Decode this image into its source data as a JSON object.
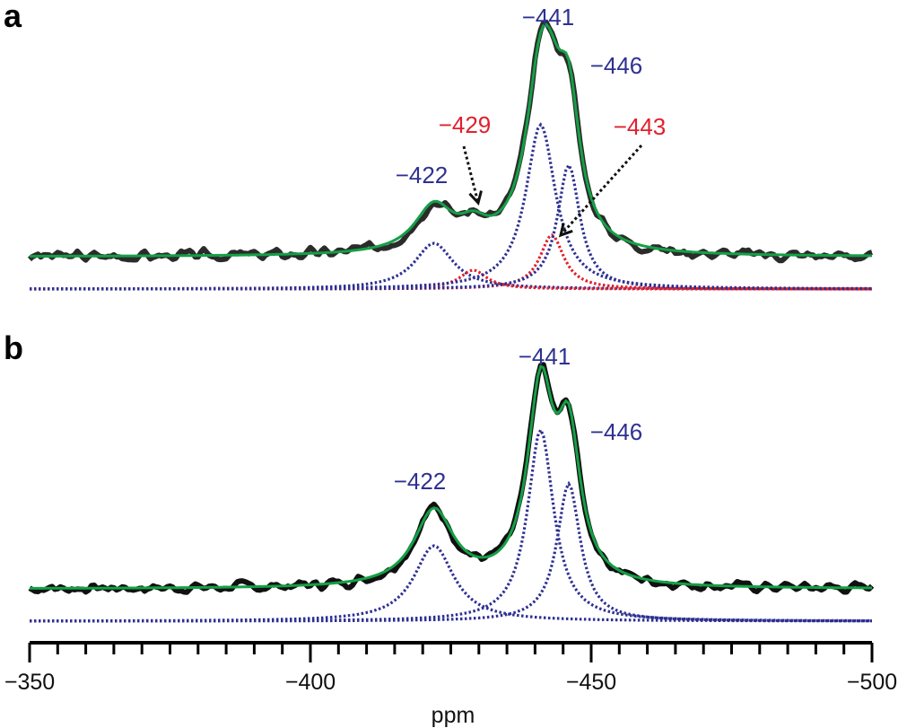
{
  "chart_data": [
    {
      "panel": "a",
      "type": "line",
      "xlabel": "ppm",
      "xlim": [
        -350,
        -500
      ],
      "baseline_component": 0.0,
      "baseline_fit": 0.12,
      "fit_color": "#14a046",
      "data_color": "#2b2b2b",
      "series": [
        {
          "name": "-422",
          "role": "component",
          "color": "#2e3191",
          "style": "dotted",
          "center": -422,
          "height": 0.17,
          "width": 4.2
        },
        {
          "name": "-429",
          "role": "component",
          "color": "#e0202c",
          "style": "dotted",
          "center": -429,
          "height": 0.07,
          "width": 3.0
        },
        {
          "name": "-441",
          "role": "component",
          "color": "#2e3191",
          "style": "dotted",
          "center": -441,
          "height": 0.61,
          "width": 3.2
        },
        {
          "name": "-443",
          "role": "component",
          "color": "#e0202c",
          "style": "dotted",
          "center": -443,
          "height": 0.2,
          "width": 2.6
        },
        {
          "name": "-446",
          "role": "component",
          "color": "#2e3191",
          "style": "dotted",
          "center": -446,
          "height": 0.46,
          "width": 2.4
        }
      ],
      "labels": [
        {
          "text": "−441",
          "color": "#2e3191",
          "x": -441
        },
        {
          "text": "−446",
          "color": "#2e3191",
          "x": -450
        },
        {
          "text": "−422",
          "color": "#2e3191",
          "x": -420
        },
        {
          "text": "−429",
          "color": "#e0202c",
          "x": -429
        },
        {
          "text": "−443",
          "color": "#e0202c",
          "x": -449
        }
      ]
    },
    {
      "panel": "b",
      "type": "line",
      "xlabel": "ppm",
      "xlim": [
        -350,
        -500
      ],
      "baseline_component": 0.0,
      "baseline_fit": 0.12,
      "fit_color": "#14a046",
      "data_color": "#111111",
      "series": [
        {
          "name": "-422",
          "role": "component",
          "color": "#2e3191",
          "style": "dotted",
          "center": -422,
          "height": 0.28,
          "width": 4.3
        },
        {
          "name": "-441",
          "role": "component",
          "color": "#2e3191",
          "style": "dotted",
          "center": -441,
          "height": 0.71,
          "width": 2.8
        },
        {
          "name": "-446",
          "role": "component",
          "color": "#2e3191",
          "style": "dotted",
          "center": -446,
          "height": 0.51,
          "width": 2.5
        }
      ],
      "labels": [
        {
          "text": "−441",
          "color": "#2e3191",
          "x": -441
        },
        {
          "text": "−446",
          "color": "#2e3191",
          "x": -450
        },
        {
          "text": "−422",
          "color": "#2e3191",
          "x": -420
        }
      ]
    }
  ],
  "axis": {
    "ticks_major": [
      -350,
      -400,
      -450,
      -500
    ],
    "tick_labels": [
      "−350",
      "−400",
      "−450",
      "−500"
    ],
    "minor_step": 5,
    "xlabel": "ppm"
  },
  "panel_letters": [
    "a",
    "b"
  ]
}
